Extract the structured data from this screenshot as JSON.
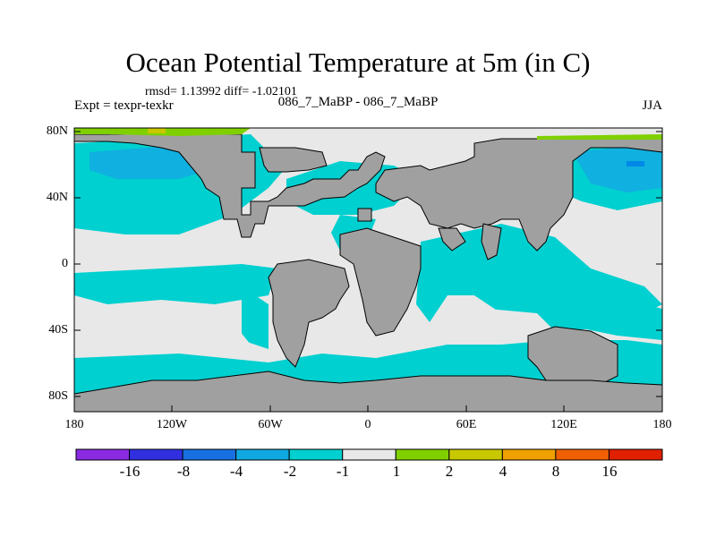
{
  "title": "Ocean Potential Temperature at 5m (in C)",
  "stats": "rmsd= 1.13992 diff= -1.02101",
  "experiment": "Expt = texpr-texkr",
  "run_label": "086_7_MaBP - 086_7_MaBP",
  "season": "JJA",
  "colors": {
    "land": "#a0a0a0",
    "ocean_neutral": "#e8e8e8",
    "cyan_minus1": "#00d0d0",
    "blue_minus2": "#10b0e0",
    "blue_minus4": "#0088e8",
    "green_plus1": "#80d000",
    "yellow_plus2": "#c8c800"
  },
  "map": {
    "lat_labels": [
      "80N",
      "40N",
      "0",
      "40S",
      "80S"
    ],
    "lon_labels": [
      "180",
      "120W",
      "60W",
      "0",
      "60E",
      "120E",
      "180"
    ]
  },
  "colorbar": {
    "colors": [
      "#8a2be2",
      "#3030e0",
      "#1870e0",
      "#10a8e0",
      "#00d0d0",
      "#e8e8e8",
      "#80d000",
      "#c8c800",
      "#f0a000",
      "#f06000",
      "#e02000"
    ],
    "labels": [
      "-16",
      "-8",
      "-4",
      "-2",
      "-1",
      "1",
      "2",
      "4",
      "8",
      "16"
    ]
  }
}
